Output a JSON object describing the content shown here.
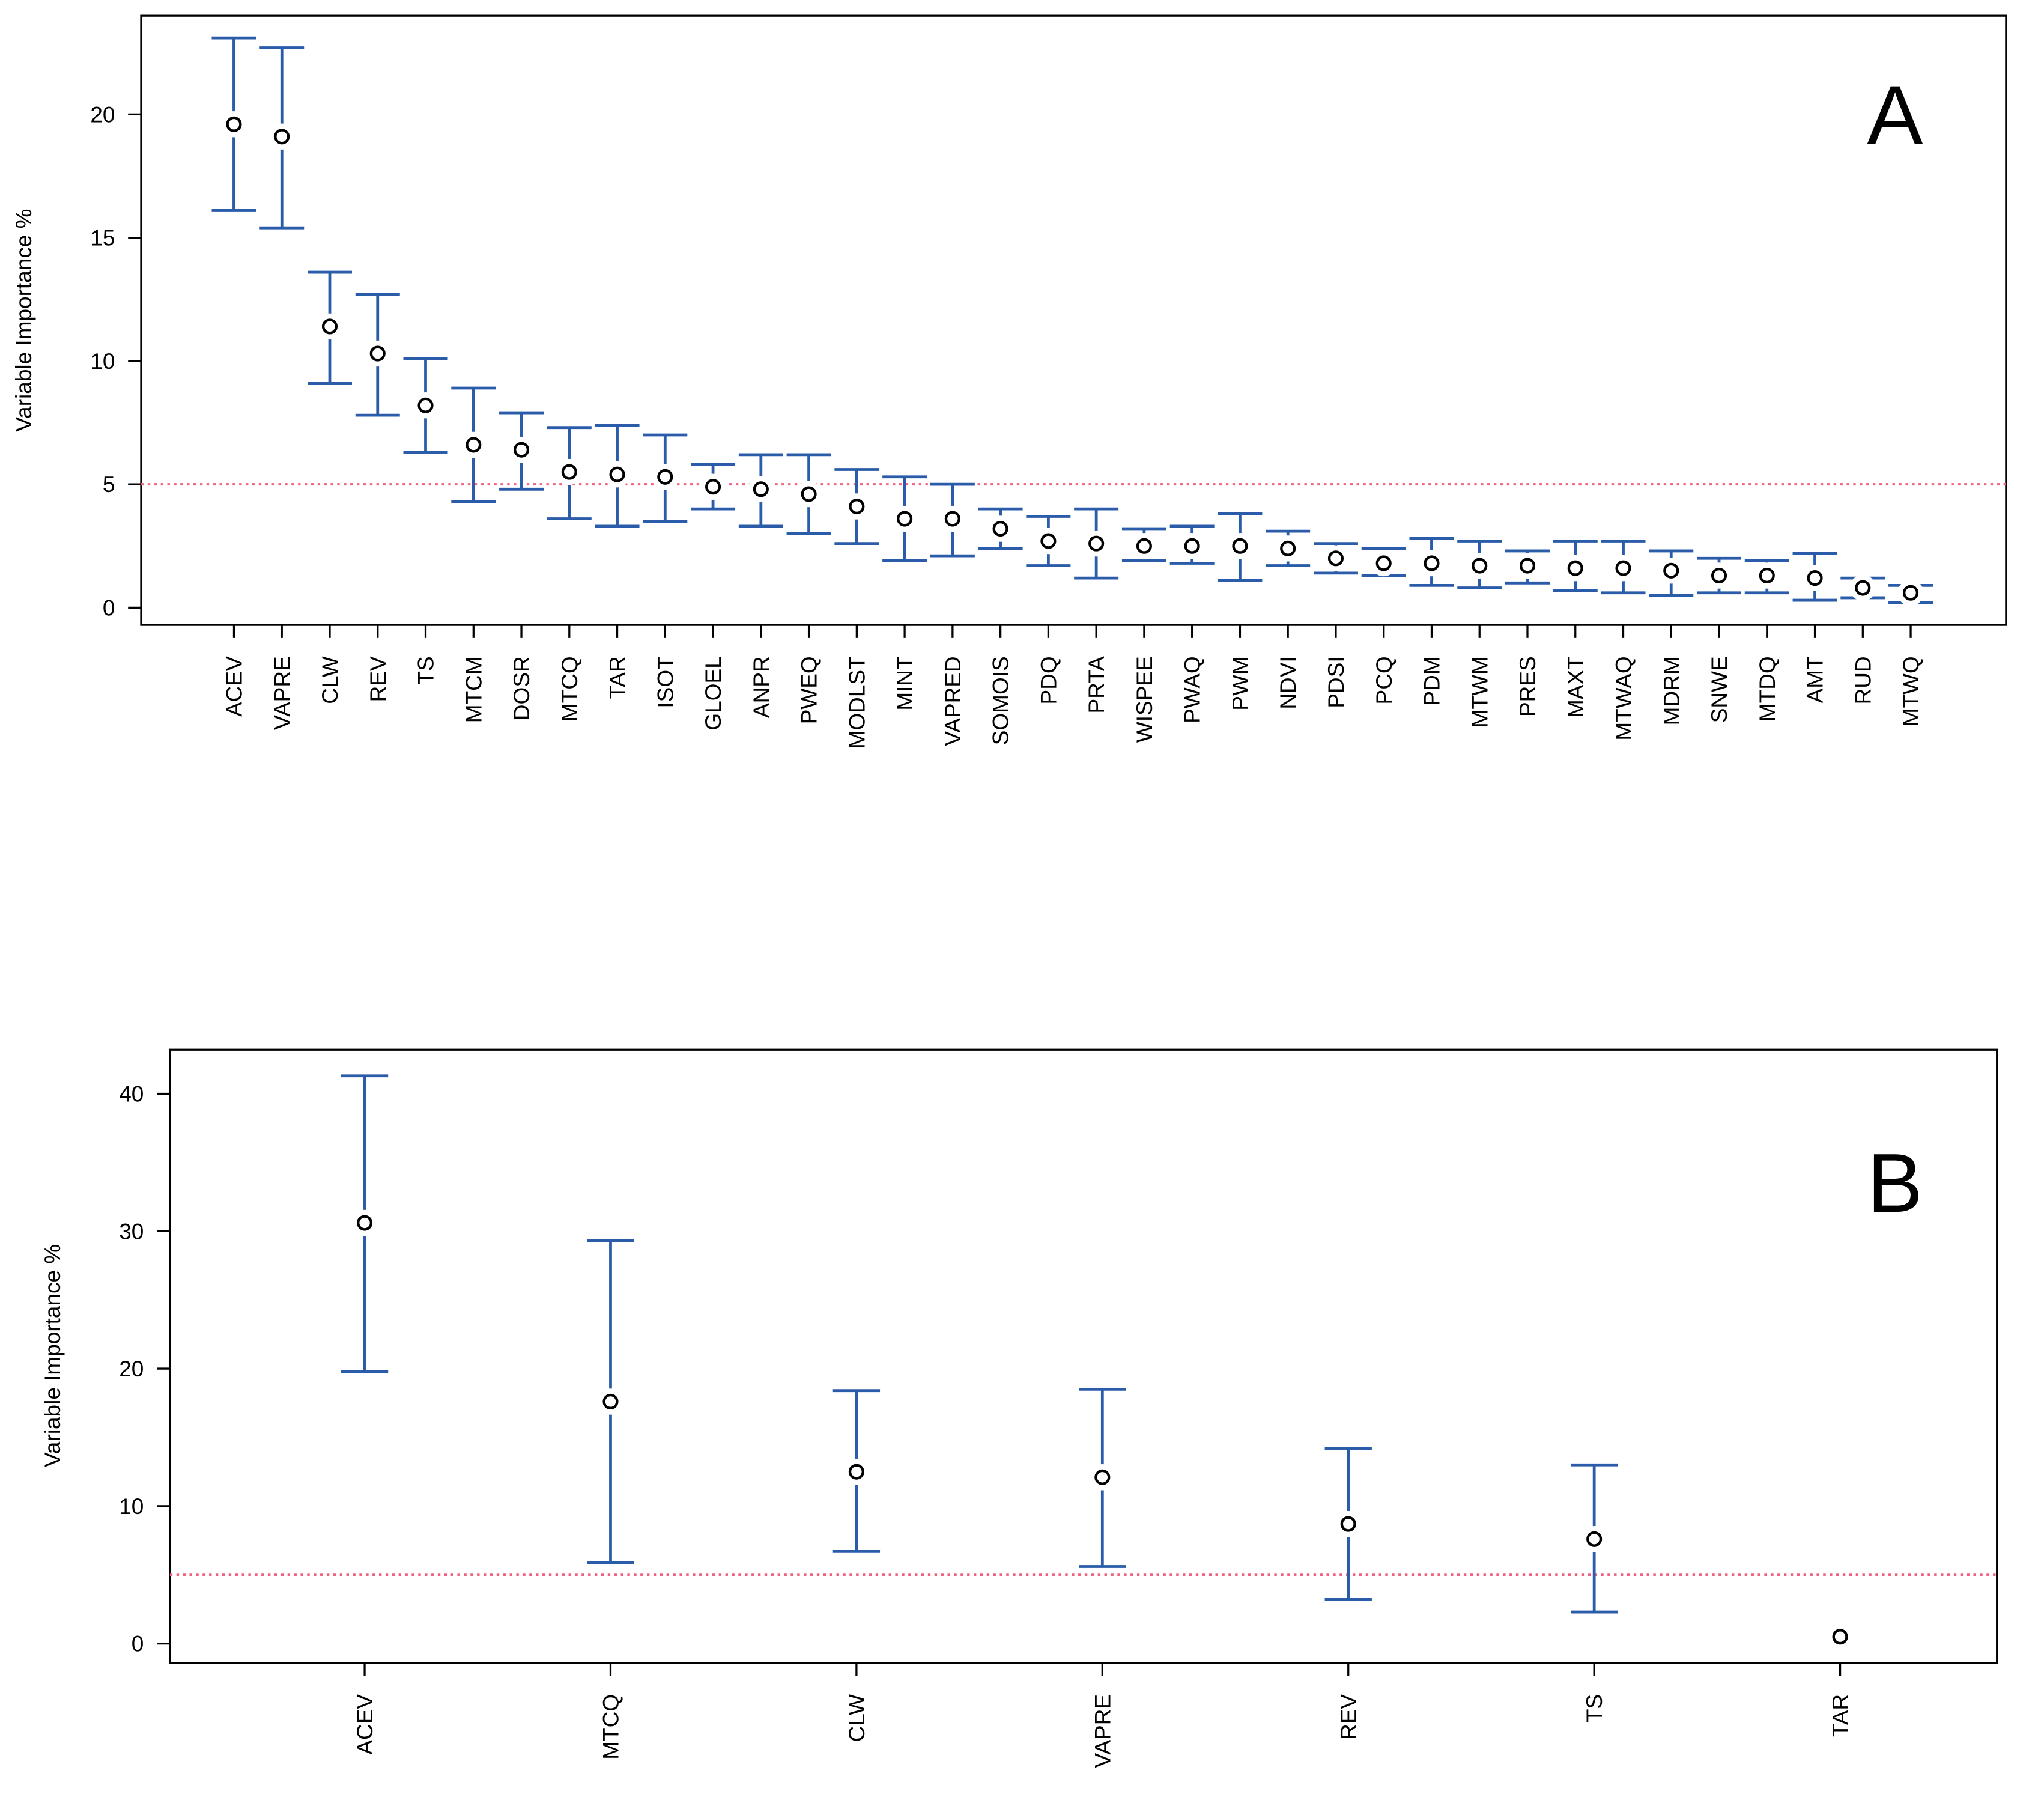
{
  "chart_data": [
    {
      "type": "errorbar",
      "panel_label": "A",
      "y_label": "Variable Importance %",
      "categories": [
        "ACEV",
        "VAPRE",
        "CLW",
        "REV",
        "TS",
        "MTCM",
        "DOSR",
        "MTCQ",
        "TAR",
        "ISOT",
        "GLOEL",
        "ANPR",
        "PWEQ",
        "MODLST",
        "MINT",
        "VAPRED",
        "SOMOIS",
        "PDQ",
        "PRTA",
        "WISPEE",
        "PWAQ",
        "PWM",
        "NDVI",
        "PDSI",
        "PCQ",
        "PDM",
        "MTWM",
        "PRES",
        "MAXT",
        "MTWAQ",
        "MDRM",
        "SNWE",
        "MTDQ",
        "AMT",
        "RUD",
        "MTWQ"
      ],
      "series": [
        {
          "color": "#2a5caa",
          "values": [
            19.6,
            19.1,
            11.4,
            10.3,
            8.2,
            6.6,
            6.4,
            5.5,
            5.4,
            5.3,
            4.9,
            4.8,
            4.6,
            4.1,
            3.6,
            3.6,
            3.2,
            2.7,
            2.6,
            2.5,
            2.5,
            2.5,
            2.4,
            2.0,
            1.8,
            1.8,
            1.7,
            1.7,
            1.6,
            1.6,
            1.5,
            1.3,
            1.3,
            1.2,
            0.8,
            0.6
          ],
          "lower": [
            16.1,
            15.4,
            9.1,
            7.8,
            6.3,
            4.3,
            4.8,
            3.6,
            3.3,
            3.5,
            4.0,
            3.3,
            3.0,
            2.6,
            1.9,
            2.1,
            2.4,
            1.7,
            1.2,
            1.9,
            1.8,
            1.1,
            1.7,
            1.4,
            1.3,
            0.9,
            0.8,
            1.0,
            0.7,
            0.6,
            0.5,
            0.6,
            0.6,
            0.3,
            0.4,
            0.2
          ],
          "upper": [
            23.1,
            22.7,
            13.6,
            12.7,
            10.1,
            8.9,
            7.9,
            7.3,
            7.4,
            7.0,
            5.8,
            6.2,
            6.2,
            5.6,
            5.3,
            5.0,
            4.0,
            3.7,
            4.0,
            3.2,
            3.3,
            3.8,
            3.1,
            2.6,
            2.4,
            2.8,
            2.7,
            2.3,
            2.7,
            2.7,
            2.3,
            2.0,
            1.9,
            2.2,
            1.2,
            0.9
          ]
        }
      ],
      "hline": 5,
      "hline_color": "#f0607f",
      "ylim": [
        -0.7,
        24
      ],
      "yticks": [
        0,
        5,
        10,
        15,
        20
      ]
    },
    {
      "type": "errorbar",
      "panel_label": "B",
      "y_label": "Variable Importance %",
      "categories": [
        "ACEV",
        "MTCQ",
        "CLW",
        "VAPRE",
        "REV",
        "TS",
        "TAR"
      ],
      "series": [
        {
          "color": "#2a5caa",
          "values": [
            30.6,
            17.6,
            12.5,
            12.1,
            8.7,
            7.6,
            0.5
          ],
          "lower": [
            19.8,
            5.9,
            6.7,
            5.6,
            3.2,
            2.3,
            null
          ],
          "upper": [
            41.3,
            29.3,
            18.4,
            18.5,
            14.2,
            13.0,
            null
          ]
        }
      ],
      "hline": 5,
      "hline_color": "#f0607f",
      "ylim": [
        -1.4,
        43.2
      ],
      "yticks": [
        0,
        10,
        20,
        30,
        40
      ]
    }
  ]
}
